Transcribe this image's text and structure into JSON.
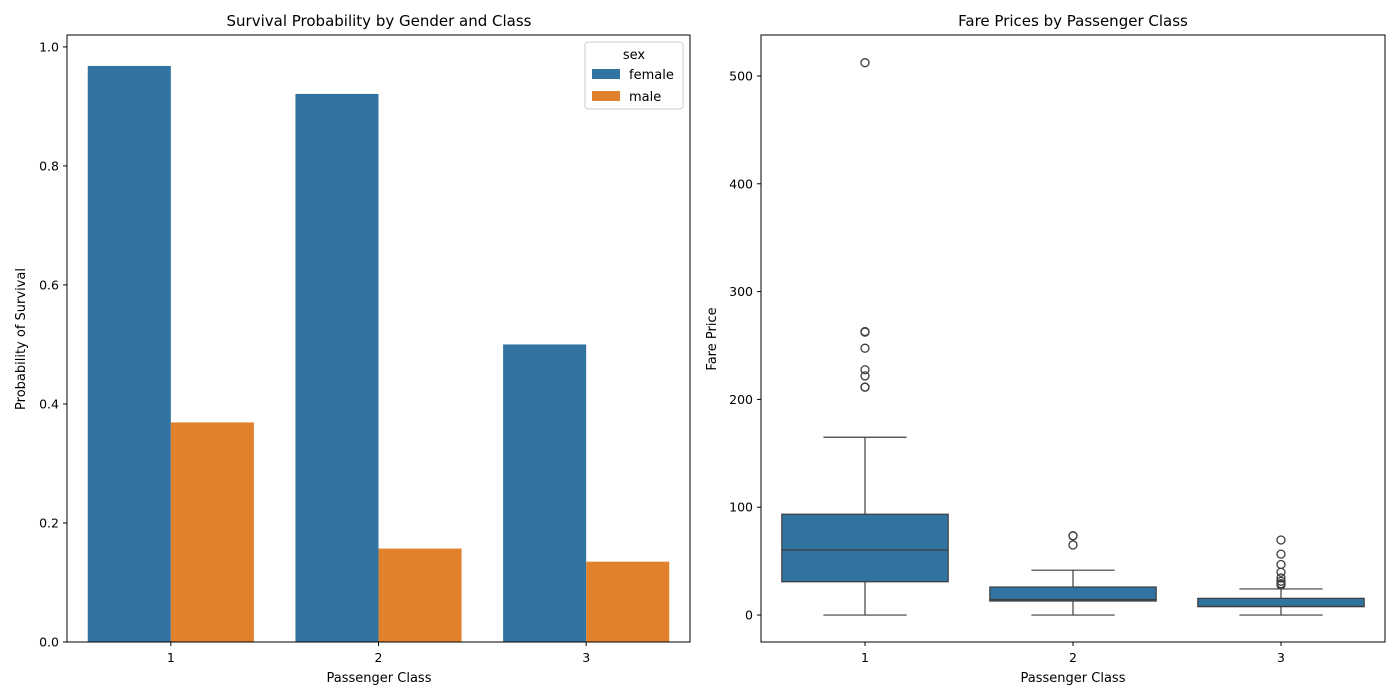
{
  "chart_data": [
    {
      "type": "bar",
      "title": "Survival Probability by Gender and Class",
      "xlabel": "Passenger Class",
      "ylabel": "Probability of Survival",
      "categories": [
        "1",
        "2",
        "3"
      ],
      "ylim": [
        0,
        1.02
      ],
      "yticks": [
        "0.0",
        "0.2",
        "0.4",
        "0.6",
        "0.8",
        "1.0"
      ],
      "legend": {
        "title": "sex",
        "position": "top-right"
      },
      "series": [
        {
          "name": "female",
          "color": "#3274a1",
          "values": [
            0.968,
            0.921,
            0.5
          ]
        },
        {
          "name": "male",
          "color": "#e1812c",
          "values": [
            0.369,
            0.157,
            0.135
          ]
        }
      ],
      "grid": false
    },
    {
      "type": "box",
      "title": "Fare Prices by Passenger Class",
      "xlabel": "Passenger Class",
      "ylabel": "Fare Price",
      "categories": [
        "1",
        "2",
        "3"
      ],
      "ylim": [
        -25,
        538
      ],
      "yticks": [
        "0",
        "100",
        "200",
        "300",
        "400",
        "500"
      ],
      "color": "#3274a1",
      "boxes": [
        {
          "category": "1",
          "whisker_low": 0,
          "q1": 30.9,
          "median": 60.3,
          "q3": 93.5,
          "whisker_high": 164.9,
          "outliers": [
            211.3,
            211.5,
            221.8,
            227.5,
            247.5,
            262.4,
            263,
            512.3
          ]
        },
        {
          "category": "2",
          "whisker_low": 0,
          "q1": 13,
          "median": 14.3,
          "q3": 26,
          "whisker_high": 41.6,
          "outliers": [
            65,
            73.5,
            73.5
          ]
        },
        {
          "category": "3",
          "whisker_low": 0,
          "q1": 7.75,
          "median": 8.05,
          "q3": 15.5,
          "whisker_high": 24.2,
          "outliers": [
            27.9,
            29.1,
            31.3,
            34.4,
            39.7,
            46.9,
            56.5,
            69.6
          ]
        }
      ],
      "grid": false
    }
  ]
}
